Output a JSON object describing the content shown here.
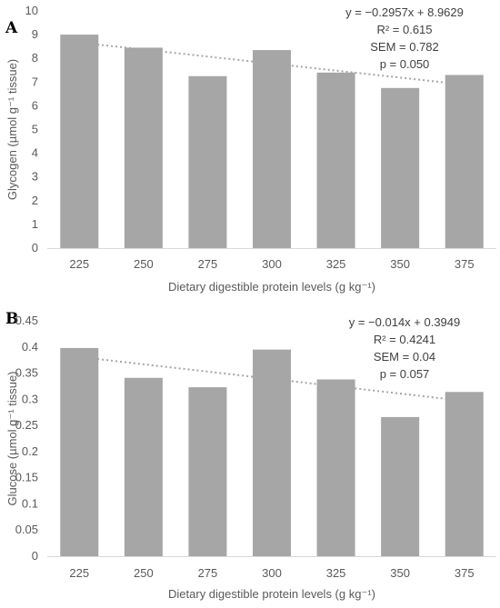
{
  "chart_data": [
    {
      "panel": "A",
      "type": "bar",
      "categories": [
        "225",
        "250",
        "275",
        "300",
        "325",
        "350",
        "375"
      ],
      "values": [
        9.0,
        8.45,
        7.25,
        8.35,
        7.4,
        6.75,
        7.3
      ],
      "xlabel": "Dietary digestible protein levels (g kg⁻¹)",
      "ylabel": "Glycogen (µmol g⁻¹ tissue)",
      "ylim": [
        0,
        10
      ],
      "yticks": [
        "0",
        "1",
        "2",
        "3",
        "4",
        "5",
        "6",
        "7",
        "8",
        "9",
        "10"
      ],
      "bar_color": "#a6a6a6",
      "trendline": {
        "style": "dotted",
        "color": "#a6a6a6",
        "slope": -0.2957,
        "intercept": 8.9629
      },
      "annotations": [
        "y = −0.2957x + 8.9629",
        "R² = 0.615",
        "SEM = 0.782",
        "p = 0.050"
      ],
      "grid": false,
      "legend": "none"
    },
    {
      "panel": "B",
      "type": "bar",
      "categories": [
        "225",
        "250",
        "275",
        "300",
        "325",
        "350",
        "375"
      ],
      "values": [
        0.398,
        0.341,
        0.323,
        0.395,
        0.338,
        0.266,
        0.314
      ],
      "xlabel": "Dietary digestible protein levels (g kg⁻¹)",
      "ylabel": "Glucose (µmol g⁻¹ tissue)",
      "ylim": [
        0,
        0.45
      ],
      "yticks": [
        "0",
        "0.05",
        "0.1",
        "0.15",
        "0.2",
        "0.25",
        "0.3",
        "0.35",
        "0.4",
        "0.45"
      ],
      "bar_color": "#a6a6a6",
      "trendline": {
        "style": "dotted",
        "color": "#a6a6a6",
        "slope": -0.014,
        "intercept": 0.3949
      },
      "annotations": [
        "y = −0.014x + 0.3949",
        "R² = 0.4241",
        "SEM = 0.04",
        "p = 0.057"
      ],
      "grid": false,
      "legend": "none"
    }
  ]
}
